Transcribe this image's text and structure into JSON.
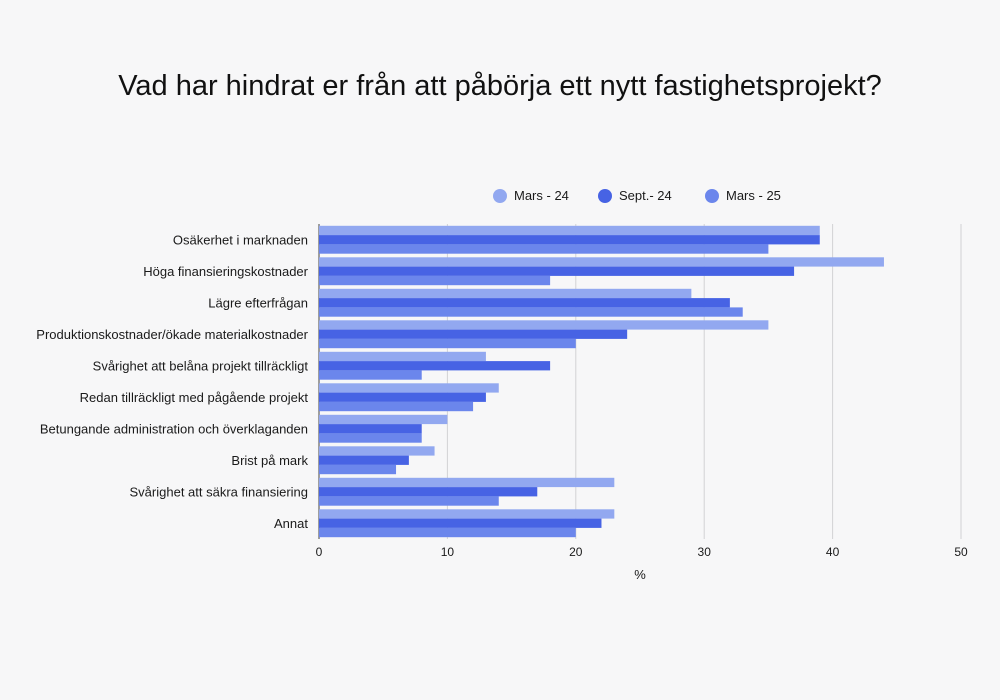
{
  "chart_data": {
    "type": "bar",
    "orientation": "horizontal",
    "title": "Vad har hindrat er från att påbörja ett nytt fastighetsprojekt?",
    "xlabel": "%",
    "ylabel": "",
    "xlim": [
      0,
      50
    ],
    "xticks": [
      0,
      10,
      20,
      30,
      40,
      50
    ],
    "grid": true,
    "legend_position": "top-right",
    "categories": [
      "Osäkerhet i marknaden",
      "Höga finansieringskostnader",
      "Lägre efterfrågan",
      "Produktionskostnader/ökade materialkostnader",
      "Svårighet att belåna projekt tillräckligt",
      "Redan tillräckligt med pågående projekt",
      "Betungande administration och överklaganden",
      "Brist på mark",
      "Svårighet att säkra finansiering",
      "Annat"
    ],
    "series": [
      {
        "name": "Mars - 24",
        "color": "#92a8f0",
        "values": [
          39,
          44,
          29,
          35,
          13,
          14,
          10,
          9,
          23,
          23
        ]
      },
      {
        "name": "Sept.- 24",
        "color": "#4763e4",
        "values": [
          39,
          37,
          32,
          24,
          18,
          13,
          8,
          7,
          17,
          22
        ]
      },
      {
        "name": "Mars - 25",
        "color": "#6b86ec",
        "values": [
          35,
          18,
          33,
          20,
          8,
          12,
          8,
          6,
          14,
          20
        ]
      }
    ]
  }
}
